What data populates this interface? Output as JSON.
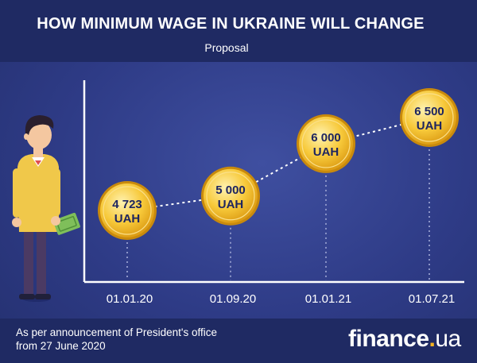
{
  "header": {
    "title": "HOW MINIMUM WAGE IN UKRAINE WILL CHANGE",
    "subtitle": "Proposal"
  },
  "footer": {
    "note_line1": "As per announcement of President's office",
    "note_line2": "from 27 June 2020",
    "brand_name": "finance",
    "brand_dot": ".",
    "brand_tld": "ua"
  },
  "chart_data": {
    "type": "line",
    "title": "HOW MINIMUM WAGE IN UKRAINE WILL CHANGE",
    "subtitle": "Proposal",
    "categories": [
      "01.01.20",
      "01.09.20",
      "01.01.21",
      "01.07.21"
    ],
    "series": [
      {
        "values": [
          4723,
          5000,
          6000,
          6500
        ],
        "labels": [
          [
            "4 723",
            "UAH"
          ],
          [
            "5 000",
            "UAH"
          ],
          [
            "6 000",
            "UAH"
          ],
          [
            "6 500",
            "UAH"
          ]
        ]
      }
    ],
    "ylim": [
      3500,
      7000
    ],
    "grid": false,
    "colors": {
      "coin": "#f2b422",
      "coin_light": "#fde79a",
      "line": "#ffffff",
      "axis": "#ffffff"
    }
  }
}
